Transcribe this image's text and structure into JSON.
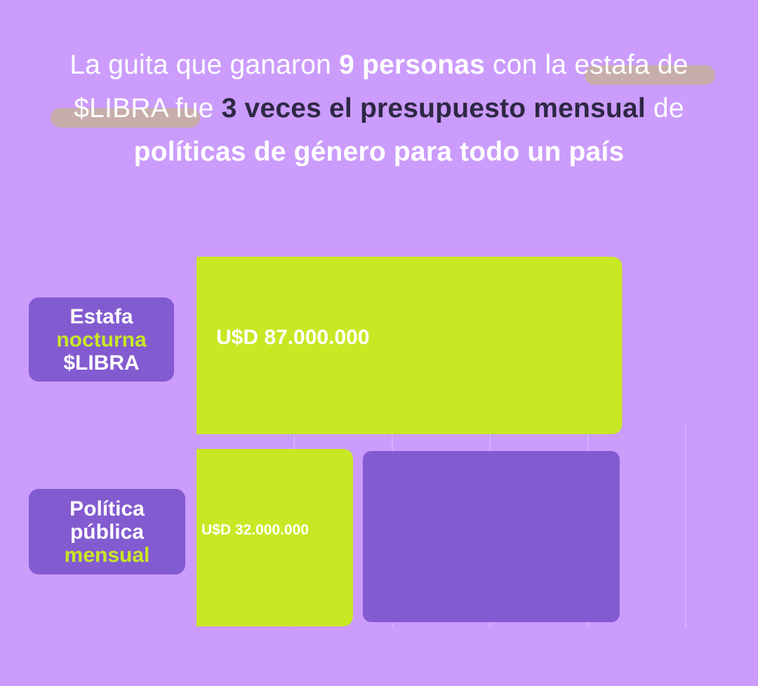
{
  "headline": {
    "p1": "La guita que ganaron ",
    "p2": "9 personas",
    "p3": " con la estafa de $LIBRA fue ",
    "p4": "3 veces el presupuesto mensual",
    "p5": " de ",
    "p6": "políticas de género para todo un país"
  },
  "colors": {
    "background": "#cb9cfc",
    "bar_lime": "#c8e824",
    "bar_purple": "#835bd0",
    "headline_dark": "#2d2844",
    "marker": "#c7b29c"
  },
  "chart_data": {
    "type": "bar",
    "orientation": "horizontal",
    "categories": [
      {
        "line1": "Estafa",
        "line2": "nocturna",
        "line3": "$LIBRA",
        "accent_line": 2
      },
      {
        "line1": "Política",
        "line2": "pública",
        "line3": "mensual",
        "accent_line": 3
      }
    ],
    "series": [
      {
        "values": [
          87000000,
          32000000
        ],
        "labels": [
          "U$D 87.000.000",
          "U$D 32.000.000"
        ],
        "color": "#c8e824"
      }
    ],
    "comparison_block": {
      "start": 34000000,
      "end": 86500000,
      "color": "#835bd0"
    },
    "xlim": [
      0,
      100000000
    ],
    "grid": true
  }
}
